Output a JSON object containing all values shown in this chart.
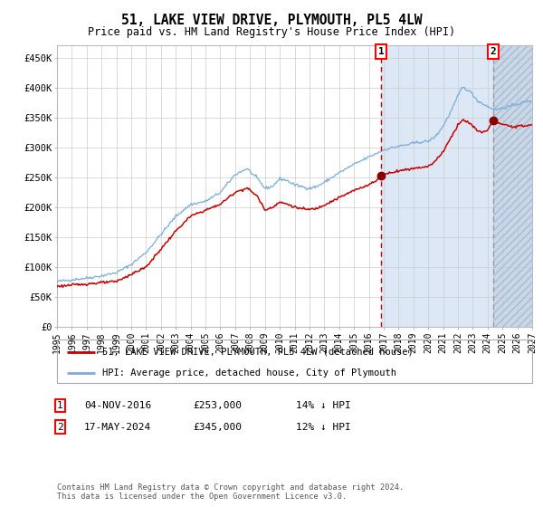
{
  "title": "51, LAKE VIEW DRIVE, PLYMOUTH, PL5 4LW",
  "subtitle": "Price paid vs. HM Land Registry's House Price Index (HPI)",
  "legend_line1": "51, LAKE VIEW DRIVE, PLYMOUTH, PL5 4LW (detached house)",
  "legend_line2": "HPI: Average price, detached house, City of Plymouth",
  "annotation1_date": "04-NOV-2016",
  "annotation1_price": "£253,000",
  "annotation1_hpi": "14% ↓ HPI",
  "annotation2_date": "17-MAY-2024",
  "annotation2_price": "£345,000",
  "annotation2_hpi": "12% ↓ HPI",
  "footnote": "Contains HM Land Registry data © Crown copyright and database right 2024.\nThis data is licensed under the Open Government Licence v3.0.",
  "hpi_color": "#7aaddb",
  "price_color": "#cc0000",
  "dot_color": "#880000",
  "vline1_color": "#cc0000",
  "vline2_color": "#999999",
  "bg_color": "#dce8f5",
  "hatch_bg_color": "#c8d8ea",
  "ylim_min": 0,
  "ylim_max": 470000,
  "sale1_year": 2016.84,
  "sale2_year": 2024.38,
  "sale1_price": 253000,
  "sale2_price": 345000,
  "xmin": 1995,
  "xmax": 2027
}
